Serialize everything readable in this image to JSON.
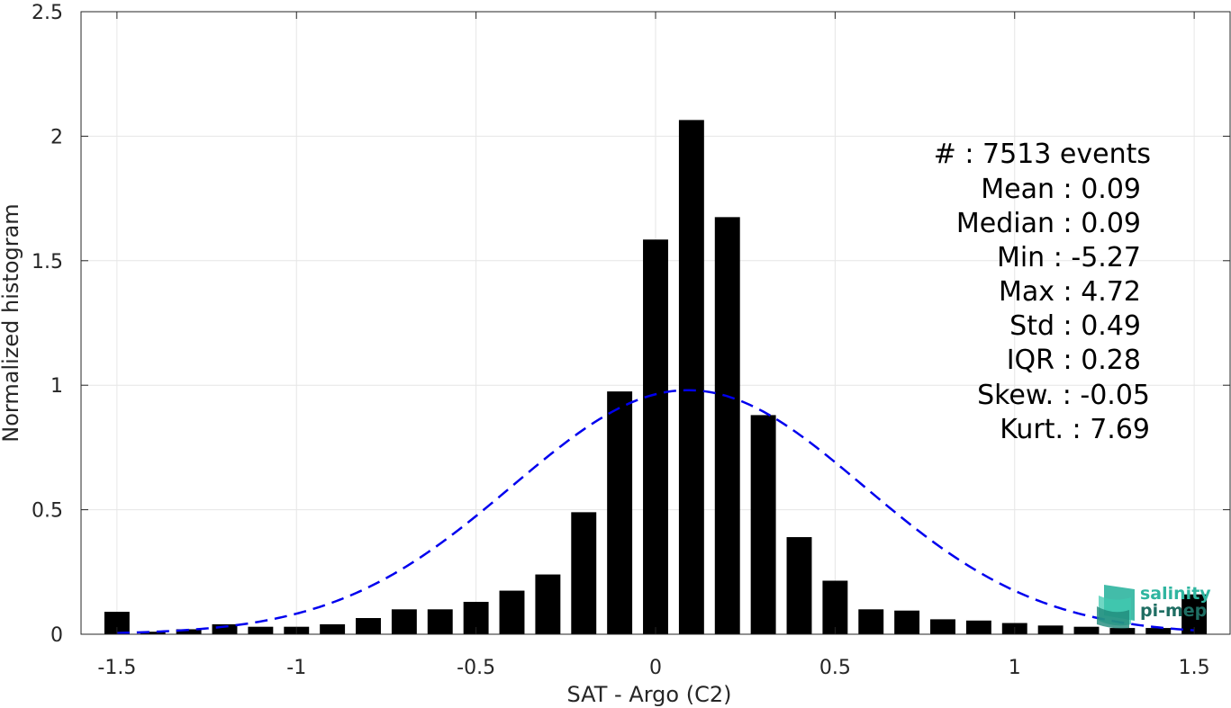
{
  "chart_data": {
    "type": "bar",
    "xlabel": "SAT - Argo (C2)",
    "ylabel": "Normalized histogram",
    "xlim": [
      -1.6,
      1.6
    ],
    "ylim": [
      0,
      2.5
    ],
    "xticks": [
      "-1.5",
      "-1",
      "-0.5",
      "0",
      "0.5",
      "1",
      "1.5"
    ],
    "xtick_values": [
      -1.5,
      -1,
      -0.5,
      0,
      0.5,
      1,
      1.5
    ],
    "yticks": [
      "0",
      "0.5",
      "1",
      "1.5",
      "2",
      "2.5"
    ],
    "ytick_values": [
      0,
      0.5,
      1,
      1.5,
      2,
      2.5
    ],
    "grid": true,
    "bar_width": 0.07,
    "bins": [
      -1.5,
      -1.4,
      -1.3,
      -1.2,
      -1.1,
      -1.0,
      -0.9,
      -0.8,
      -0.7,
      -0.6,
      -0.5,
      -0.4,
      -0.3,
      -0.2,
      -0.1,
      0.0,
      0.1,
      0.2,
      0.3,
      0.4,
      0.5,
      0.6,
      0.7,
      0.8,
      0.9,
      1.0,
      1.1,
      1.2,
      1.3,
      1.4,
      1.5
    ],
    "values": [
      0.09,
      0.01,
      0.02,
      0.04,
      0.03,
      0.03,
      0.04,
      0.065,
      0.1,
      0.1,
      0.13,
      0.175,
      0.24,
      0.49,
      0.975,
      1.585,
      2.065,
      1.675,
      0.88,
      0.39,
      0.215,
      0.1,
      0.095,
      0.06,
      0.055,
      0.045,
      0.035,
      0.03,
      0.025,
      0.025,
      0.16
    ],
    "fit": {
      "type": "gaussian",
      "mean": 0.09,
      "std": 0.49,
      "peak": 0.98,
      "color": "#0000ee",
      "style": "dashed"
    },
    "bar_color": "#000000"
  },
  "stats": {
    "lines": [
      "#  : 7513 events",
      "Mean : 0.09",
      "Median : 0.09",
      "Min : -5.27",
      "Max : 4.72",
      "Std : 0.49",
      "IQR : 0.28",
      "Skew. : -0.05",
      "Kurt. : 7.69"
    ]
  },
  "logo": {
    "line1": "salinity",
    "line2": "pi-mep",
    "color1": "#2fb5a0",
    "color2": "#1f6e63"
  }
}
